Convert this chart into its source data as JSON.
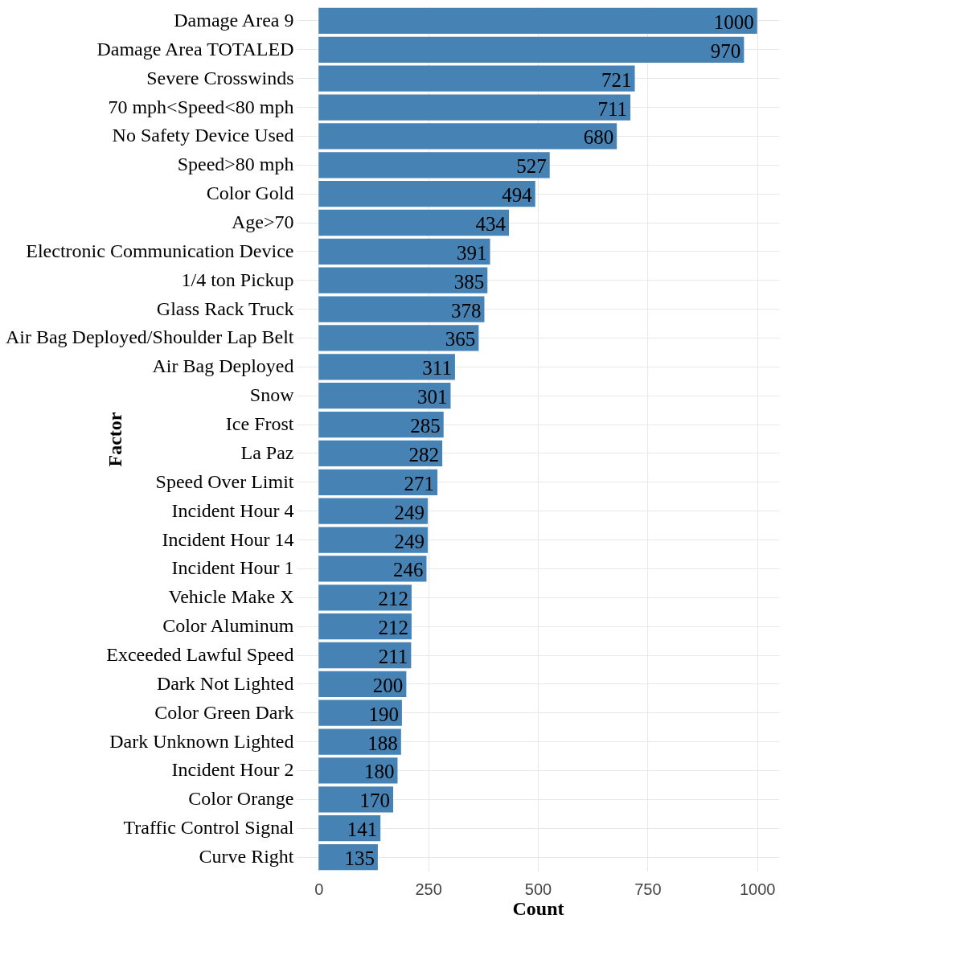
{
  "chart_data": {
    "type": "bar",
    "orientation": "horizontal",
    "xlabel": "Count",
    "ylabel": "Factor",
    "categories": [
      "Damage Area 9",
      "Damage Area TOTALED",
      "Severe Crosswinds",
      "70 mph<Speed<80 mph",
      "No Safety Device Used",
      "Speed>80 mph",
      "Color Gold",
      "Age>70",
      "Electronic Communication Device",
      "1/4 ton Pickup",
      "Glass Rack Truck",
      "Air Bag Deployed/Shoulder Lap Belt",
      "Air Bag Deployed",
      "Snow",
      "Ice Frost",
      "La Paz",
      "Speed Over Limit",
      "Incident Hour 4",
      "Incident Hour 14",
      "Incident Hour 1",
      "Vehicle Make X",
      "Color Aluminum",
      "Exceeded Lawful Speed",
      "Dark Not Lighted",
      "Color Green Dark",
      "Dark Unknown Lighted",
      "Incident Hour 2",
      "Color Orange",
      "Traffic Control Signal",
      "Curve Right"
    ],
    "values": [
      1000,
      970,
      721,
      711,
      680,
      527,
      494,
      434,
      391,
      385,
      378,
      365,
      311,
      301,
      285,
      282,
      271,
      249,
      249,
      246,
      212,
      212,
      211,
      200,
      190,
      188,
      180,
      170,
      141,
      135
    ],
    "color": "#4682b4",
    "xlim": [
      -50,
      1050
    ],
    "xticks": [
      0,
      250,
      500,
      750,
      1000
    ],
    "grid": true,
    "data_labels": true
  }
}
